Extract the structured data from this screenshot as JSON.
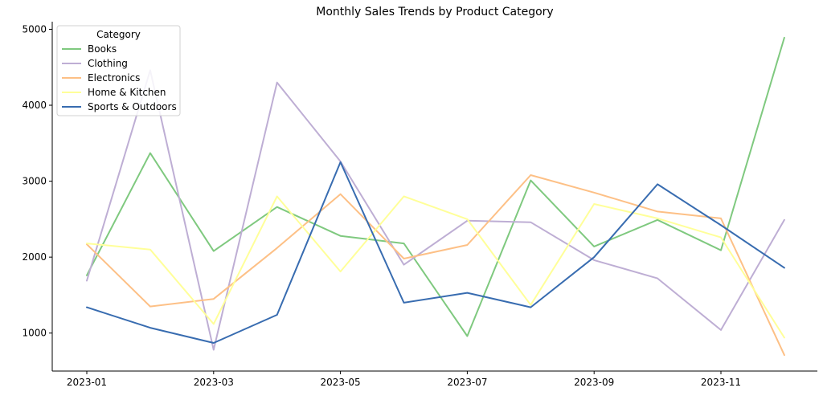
{
  "chart_data": {
    "type": "line",
    "title": "Monthly Sales Trends by Product Category",
    "xlabel": "",
    "ylabel": "",
    "x": [
      "2023-01",
      "2023-02",
      "2023-03",
      "2023-04",
      "2023-05",
      "2023-06",
      "2023-07",
      "2023-08",
      "2023-09",
      "2023-10",
      "2023-11",
      "2023-12"
    ],
    "x_tick_labels": [
      "2023-01",
      "2023-03",
      "2023-05",
      "2023-07",
      "2023-09",
      "2023-11"
    ],
    "y_ticks": [
      1000,
      2000,
      3000,
      4000,
      5000
    ],
    "ylim": [
      500,
      5100
    ],
    "grid": false,
    "legend": {
      "title": "Category",
      "placement": "top-left"
    },
    "series": [
      {
        "name": "Books",
        "color": "#7fc97f",
        "values": [
          1760,
          3370,
          2080,
          2660,
          2280,
          2180,
          960,
          3010,
          2140,
          2490,
          2090,
          4890
        ]
      },
      {
        "name": "Clothing",
        "color": "#beaed4",
        "values": [
          1690,
          4460,
          780,
          4300,
          3260,
          1900,
          2480,
          2460,
          1960,
          1720,
          1040,
          2490
        ]
      },
      {
        "name": "Electronics",
        "color": "#fdc086",
        "values": [
          2170,
          1350,
          1450,
          2120,
          2830,
          1980,
          2160,
          3080,
          2850,
          2600,
          2510,
          710
        ]
      },
      {
        "name": "Home & Kitchen",
        "color": "#ffff99",
        "values": [
          2180,
          2100,
          1120,
          2800,
          1810,
          2800,
          2500,
          1370,
          2700,
          2510,
          2260,
          940
        ]
      },
      {
        "name": "Sports & Outdoors",
        "color": "#386cb0",
        "values": [
          1340,
          1070,
          870,
          1240,
          3250,
          1400,
          1530,
          1340,
          2000,
          2960,
          2420,
          1860
        ]
      }
    ]
  }
}
